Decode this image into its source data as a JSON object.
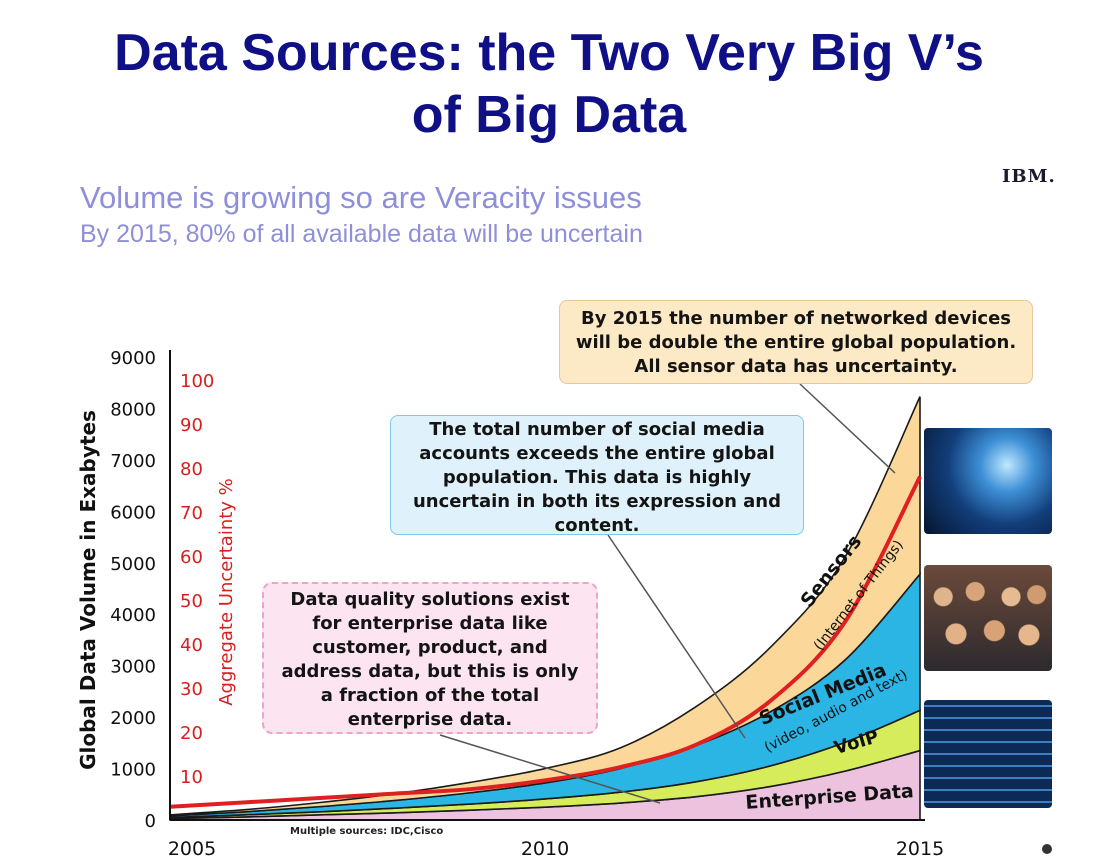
{
  "title": {
    "line1": "Data Sources: the Two Very Big V’s",
    "line2": "of Big Data"
  },
  "logo": "IBM.",
  "subtitle": {
    "line1": "Volume is growing so are Veracity issues",
    "line2": "By 2015, 80% of all available data will be uncertain"
  },
  "callouts": {
    "sensors_devices": [
      "By 2015 the number of networked devices",
      "will be double the entire global population.",
      "All sensor data has uncertainty."
    ],
    "social_media": [
      "The total number of social media",
      "accounts exceeds the entire global",
      "population. This data is highly",
      "uncertain in both its expression and",
      "content."
    ],
    "enterprise": [
      "Data quality solutions exist",
      "for enterprise data like",
      "customer, product, and",
      "address data, but this is only",
      "a fraction of the total",
      "enterprise data."
    ]
  },
  "photos": [
    "network-globe-image",
    "crowd-image",
    "data-screen-image"
  ],
  "colors": {
    "title": "#0f0f86",
    "subtitle": "#8e8fd8",
    "sensors": "#fcd79a",
    "social": "#2bb5e4",
    "voip": "#d6ec5a",
    "enterprise": "#ecc2de",
    "uncertainty": "#e02020"
  },
  "chart_data": {
    "type": "area",
    "title": "",
    "x": [
      2005,
      2006,
      2007,
      2008,
      2009,
      2010,
      2011,
      2012,
      2013,
      2014,
      2015
    ],
    "x_tick_labels": [
      "2005",
      "2010",
      "2015"
    ],
    "xlim": [
      2005,
      2015
    ],
    "ylabel": "Global Data Volume in Exabytes",
    "ylim": [
      0,
      9000
    ],
    "y_ticks": [
      0,
      1000,
      2000,
      3000,
      4000,
      5000,
      6000,
      7000,
      8000,
      9000
    ],
    "y2label": "Aggregate Uncertainty %",
    "y2_ticks": [
      10,
      20,
      30,
      40,
      50,
      60,
      70,
      80,
      90,
      100
    ],
    "y2lim": [
      0,
      112
    ],
    "stacked": true,
    "series": [
      {
        "name": "Enterprise Data",
        "color": "#ecc2de",
        "values": [
          30,
          60,
          100,
          140,
          190,
          250,
          330,
          450,
          650,
          950,
          1350
        ]
      },
      {
        "name": "VoIP",
        "color": "#d6ec5a",
        "values": [
          20,
          40,
          60,
          90,
          120,
          160,
          210,
          290,
          400,
          560,
          780
        ]
      },
      {
        "name": "Social Media",
        "sublabel": "(video, audio and text)",
        "color": "#2bb5e4",
        "values": [
          30,
          60,
          100,
          150,
          220,
          310,
          460,
          700,
          1050,
          1600,
          2650
        ]
      },
      {
        "name": "Sensors",
        "sublabel": "(Internet of Things)",
        "color": "#fcd79a",
        "values": [
          20,
          40,
          80,
          130,
          200,
          280,
          400,
          750,
          1250,
          2000,
          3450
        ]
      }
    ],
    "uncertainty_line": {
      "color": "#e02020",
      "values": [
        3,
        4,
        5,
        6,
        7,
        9,
        12,
        17,
        27,
        45,
        78
      ]
    },
    "source_note": "Multiple sources: IDC,Cisco"
  }
}
